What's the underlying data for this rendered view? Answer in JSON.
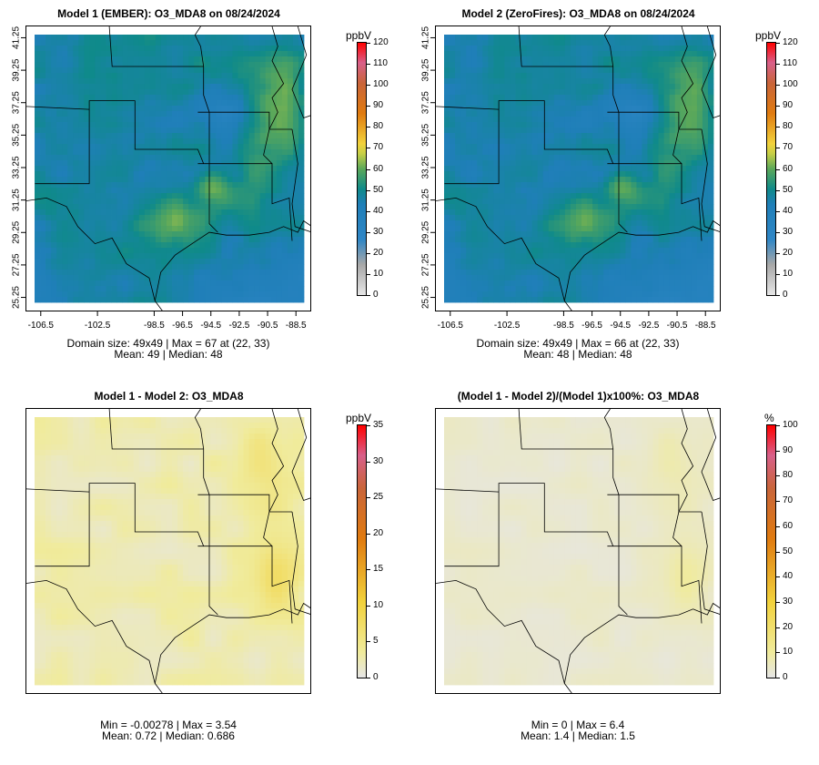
{
  "panels": [
    {
      "title": "Model 1 (EMBER): O3_MDA8 on 08/24/2024",
      "unit": "ppbV",
      "colorbar_ticks": [
        "0",
        "10",
        "20",
        "30",
        "40",
        "50",
        "60",
        "70",
        "80",
        "90",
        "100",
        "110",
        "120"
      ],
      "stats_line1": "Domain size: 49x49 | Max = 67 at (22, 33)",
      "stats_line2": "Mean: 49 |  Median: 48",
      "show_axes": true
    },
    {
      "title": "Model 2 (ZeroFires): O3_MDA8 on 08/24/2024",
      "unit": "ppbV",
      "colorbar_ticks": [
        "0",
        "10",
        "20",
        "30",
        "40",
        "50",
        "60",
        "70",
        "80",
        "90",
        "100",
        "110",
        "120"
      ],
      "stats_line1": "Domain size: 49x49 | Max = 66 at (22, 33)",
      "stats_line2": "Mean: 48 |  Median: 48",
      "show_axes": true
    },
    {
      "title": "Model 1 - Model 2: O3_MDA8",
      "unit": "ppbV",
      "colorbar_ticks": [
        "0",
        "5",
        "10",
        "15",
        "20",
        "25",
        "30",
        "35"
      ],
      "stats_line1": "Min = -0.00278 | Max = 3.54",
      "stats_line2": "Mean: 0.72 |  Median: 0.686",
      "show_axes": false
    },
    {
      "title": "(Model 1 - Model 2)/(Model 1)x100%: O3_MDA8",
      "unit": "%",
      "colorbar_ticks": [
        "0",
        "10",
        "20",
        "30",
        "40",
        "50",
        "60",
        "70",
        "80",
        "90",
        "100"
      ],
      "stats_line1": "Min = 0 | Max = 6.4",
      "stats_line2": "Mean: 1.4 |  Median: 1.5",
      "show_axes": false
    }
  ],
  "chart_data": [
    {
      "type": "heatmap",
      "title": "Model 1 (EMBER): O3_MDA8 on 08/24/2024",
      "variable": "O3_MDA8",
      "units": "ppbV",
      "date": "08/24/2024",
      "grid": [
        49,
        49
      ],
      "x_ticks": [
        -106.5,
        -102.5,
        -98.5,
        -96.5,
        -94.5,
        -92.5,
        -90.5,
        -88.5
      ],
      "y_ticks": [
        25.25,
        27.25,
        29.25,
        31.25,
        33.25,
        35.25,
        37.25,
        39.25,
        41.25
      ],
      "colorbar_range": [
        0,
        120
      ],
      "max": 67,
      "max_at": [
        22,
        33
      ],
      "mean": 49,
      "median": 48
    },
    {
      "type": "heatmap",
      "title": "Model 2 (ZeroFires): O3_MDA8 on 08/24/2024",
      "variable": "O3_MDA8",
      "units": "ppbV",
      "date": "08/24/2024",
      "grid": [
        49,
        49
      ],
      "x_ticks": [
        -106.5,
        -102.5,
        -98.5,
        -96.5,
        -94.5,
        -92.5,
        -90.5,
        -88.5
      ],
      "y_ticks": [
        25.25,
        27.25,
        29.25,
        31.25,
        33.25,
        35.25,
        37.25,
        39.25,
        41.25
      ],
      "colorbar_range": [
        0,
        120
      ],
      "max": 66,
      "max_at": [
        22,
        33
      ],
      "mean": 48,
      "median": 48
    },
    {
      "type": "heatmap",
      "title": "Model 1 - Model 2: O3_MDA8",
      "units": "ppbV",
      "colorbar_range": [
        0,
        35
      ],
      "min": -0.00278,
      "max": 3.54,
      "mean": 0.72,
      "median": 0.686
    },
    {
      "type": "heatmap",
      "title": "(Model 1 - Model 2)/(Model 1)x100%: O3_MDA8",
      "units": "%",
      "colorbar_range": [
        0,
        100
      ],
      "min": 0,
      "max": 6.4,
      "mean": 1.4,
      "median": 1.5
    }
  ],
  "colors": {
    "low_end": "#e6e6e6",
    "mid_blue": "#2f86c6",
    "mid_teal": "#0f8a8a",
    "mid_green": "#7ab84a",
    "yellow": "#f2d23c",
    "orange": "#e07b10",
    "pink": "#d8608a",
    "red_top": "#ff0000",
    "border": "#000000"
  }
}
